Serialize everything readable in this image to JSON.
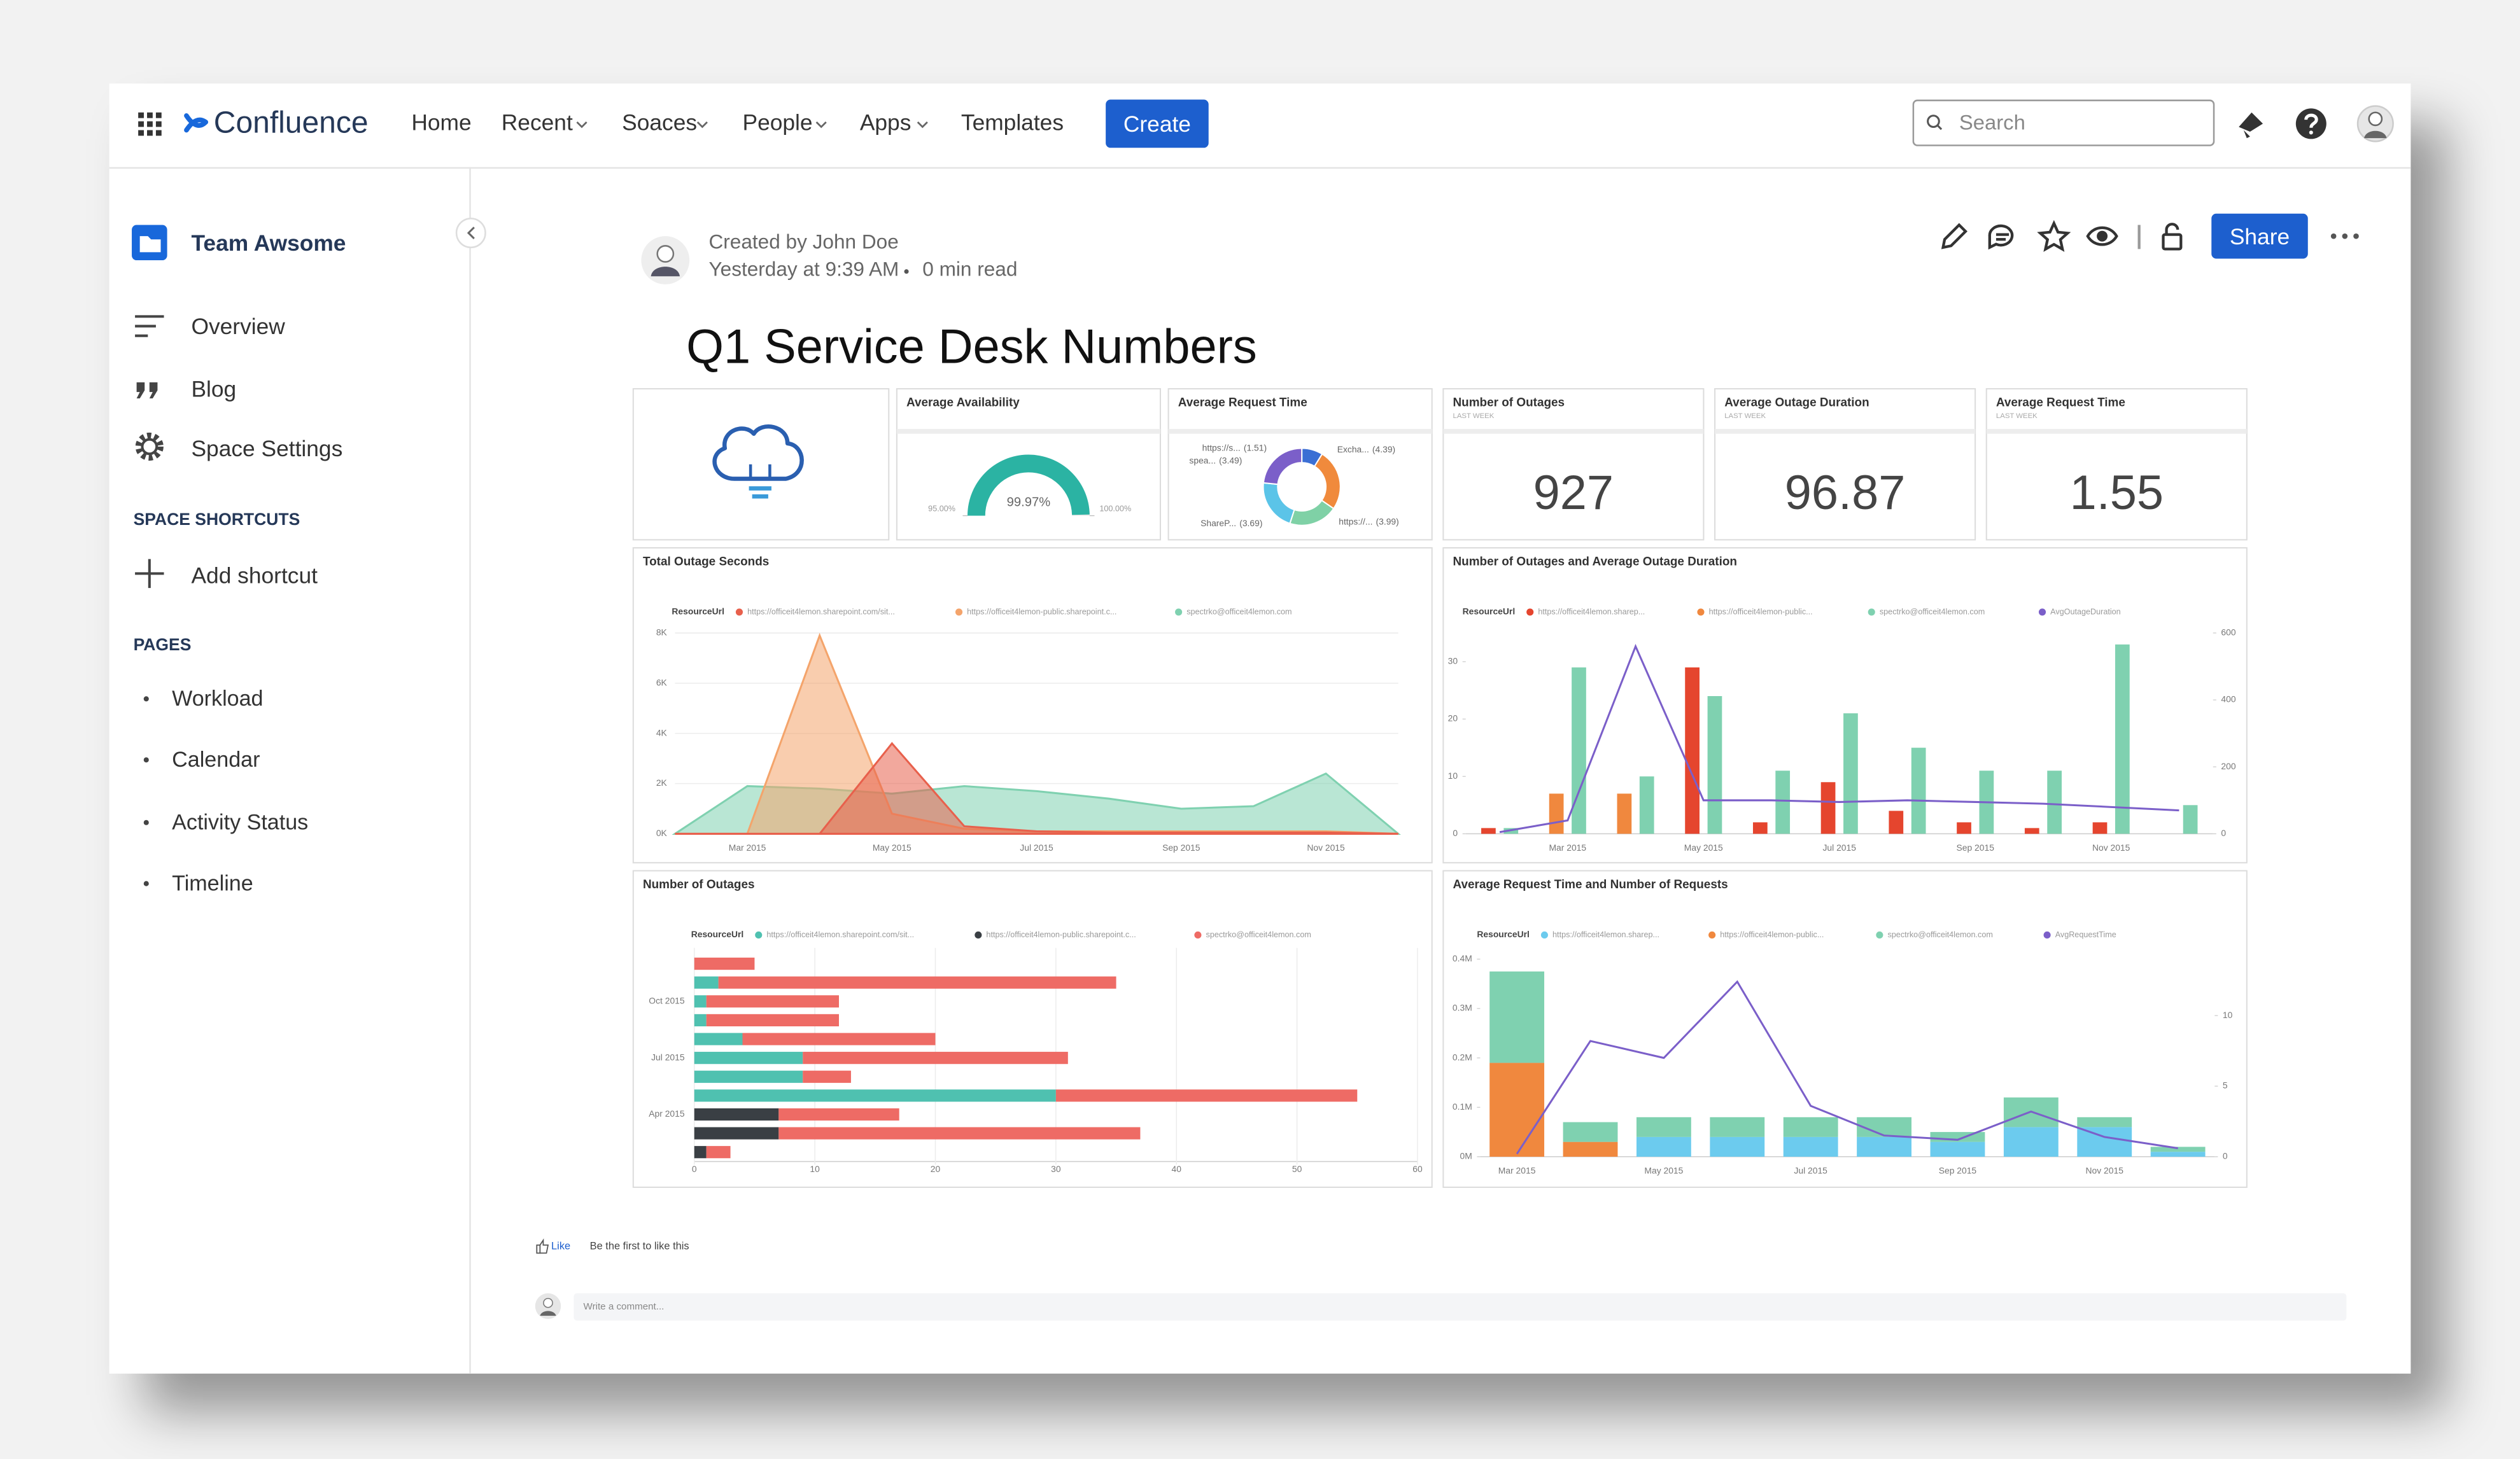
{
  "nav": {
    "brand": "Confluence",
    "items": [
      "Home",
      "Recent",
      "Soaces",
      "People",
      "Apps",
      "Templates"
    ],
    "create": "Create",
    "search": "Search"
  },
  "sidebar": {
    "space": "Team Awsome",
    "links": [
      "Overview",
      "Blog",
      "Space Settings"
    ],
    "shortcuts_heading": "SPACE SHORTCUTS",
    "add_shortcut": "Add shortcut",
    "pages_heading": "PAGES",
    "pages": [
      "Workload",
      "Calendar",
      "Activity Status",
      "Timeline"
    ]
  },
  "page": {
    "author": "Created by John Doe",
    "timestamp": "Yesterday at 9:39 AM",
    "read_time": "0 min read",
    "title": "Q1 Service Desk Numbers",
    "share": "Share",
    "like": "Like",
    "like_prompt": "Be the first to like this",
    "comment_placeholder": "Write a comment..."
  },
  "chart_data": [
    {
      "type": "gauge",
      "title": "Average Availability",
      "values": [
        99.97
      ],
      "value_labels": [
        "99.97%"
      ],
      "ylim": [
        95,
        100
      ],
      "yticks": [
        {
          "value": 95,
          "label": "95.00%"
        },
        {
          "value": 100,
          "label": "100.00%"
        }
      ],
      "color": "#2bb3a3"
    },
    {
      "type": "pie",
      "title": "Average Request Time",
      "categories": [
        "https://s...",
        "Excha...",
        "spea...",
        "ShareP...",
        "https://..."
      ],
      "values": [
        1.51,
        4.39,
        3.49,
        3.69,
        3.99
      ],
      "value_labels": [
        "(1.51)",
        "(4.39)",
        "(3.49)",
        "(3.69)",
        "(3.99)"
      ],
      "colors": [
        "#3b6fd4",
        "#f08a3c",
        "#7fd1a6",
        "#5bc4e8",
        "#7b5fc9"
      ]
    },
    {
      "type": "kpi",
      "title": "Number of Outages",
      "subtitle": "LAST WEEK",
      "values": [
        927
      ]
    },
    {
      "type": "kpi",
      "title": "Average Outage Duration",
      "subtitle": "LAST WEEK",
      "values": [
        96.87
      ]
    },
    {
      "type": "kpi",
      "title": "Average Request Time",
      "subtitle": "LAST WEEK",
      "values": [
        1.55
      ]
    },
    {
      "type": "area",
      "title": "Total Outage Seconds",
      "legend_title": "ResourceUrl",
      "categories": [
        null,
        "Mar 2015",
        null,
        "May 2015",
        null,
        "Jul 2015",
        null,
        "Sep 2015",
        null,
        "Nov 2015",
        null
      ],
      "series": [
        {
          "name": "https://officeit4lemon.sharepoint.com/sit...",
          "color": "#e8604c",
          "values": [
            0,
            0,
            0,
            3600,
            300,
            100,
            50,
            50,
            50,
            50,
            0
          ]
        },
        {
          "name": "https://officeit4lemon-public.sharepoint.c...",
          "color": "#f4a46b",
          "values": [
            0,
            0,
            7900,
            800,
            200,
            100,
            100,
            100,
            100,
            100,
            0
          ]
        },
        {
          "name": "spectrko@officeit4lemon.com",
          "color": "#7fd1b0",
          "values": [
            0,
            1900,
            1800,
            1600,
            1900,
            1700,
            1400,
            1000,
            1100,
            2400,
            0
          ]
        }
      ],
      "ylim": [
        0,
        8000
      ],
      "yticks": [
        {
          "value": 0,
          "label": "0K"
        },
        {
          "value": 2000,
          "label": "2K"
        },
        {
          "value": 4000,
          "label": "4K"
        },
        {
          "value": 6000,
          "label": "6K"
        },
        {
          "value": 8000,
          "label": "8K"
        }
      ],
      "grid": true
    },
    {
      "type": "bar_line",
      "title": "Number of Outages and Average Outage Duration",
      "legend_title": "ResourceUrl",
      "categories": [
        null,
        "Mar 2015",
        null,
        "May 2015",
        null,
        "Jul 2015",
        null,
        "Sep 2015",
        null,
        "Nov 2015",
        null
      ],
      "series": [
        {
          "name": "https://officeit4lemon.sharep...",
          "color": "#e5452e",
          "values": [
            1,
            0,
            0,
            29,
            2,
            9,
            4,
            2,
            1,
            2,
            0
          ]
        },
        {
          "name": "https://officeit4lemon-public...",
          "color": "#f0883e",
          "values": [
            0,
            7,
            7,
            0,
            0,
            0,
            0,
            0,
            0,
            0,
            0
          ]
        },
        {
          "name": "spectrko@officeit4lemon.com",
          "color": "#7fd1b0",
          "values": [
            1,
            29,
            10,
            24,
            11,
            21,
            15,
            11,
            11,
            33,
            5
          ]
        },
        {
          "name": "AvgOutageDuration",
          "color": "#7b5fc9",
          "axis": "y2",
          "values": [
            5,
            40,
            560,
            100,
            100,
            95,
            100,
            95,
            90,
            80,
            70
          ]
        }
      ],
      "ylim": [
        0,
        35
      ],
      "yticks": [
        0,
        10,
        20,
        30
      ],
      "y2lim": [
        0,
        600
      ],
      "y2ticks": [
        0,
        200,
        400,
        600
      ],
      "grid": false
    },
    {
      "type": "hbar_stacked",
      "title": "Number of Outages",
      "legend_title": "ResourceUrl",
      "categories": [
        null,
        null,
        "Oct 2015",
        null,
        null,
        "Jul 2015",
        null,
        null,
        "Apr 2015",
        null,
        null
      ],
      "series": [
        {
          "name": "https://officeit4lemon.sharepoint.com/sit...",
          "color": "#4fc1b0",
          "values": [
            0,
            2,
            1,
            1,
            4,
            9,
            9,
            30,
            0,
            0,
            0
          ]
        },
        {
          "name": "https://officeit4lemon-public.sharepoint.c...",
          "color": "#3a3f44",
          "values": [
            0,
            0,
            0,
            0,
            0,
            0,
            0,
            0,
            7,
            7,
            1
          ]
        },
        {
          "name": "spectrko@officeit4lemon.com",
          "color": "#ee6b65",
          "values": [
            5,
            33,
            11,
            11,
            16,
            22,
            4,
            25,
            10,
            30,
            2
          ]
        }
      ],
      "xlim": [
        0,
        60
      ],
      "xticks": [
        0,
        10,
        20,
        30,
        40,
        50,
        60
      ],
      "grid": true
    },
    {
      "type": "stacked_bar_line",
      "title": "Average Request Time and Number of Requests",
      "legend_title": "ResourceUrl",
      "categories": [
        "Mar 2015",
        null,
        "May 2015",
        null,
        "Jul 2015",
        null,
        "Sep 2015",
        null,
        "Nov 2015",
        null
      ],
      "series": [
        {
          "name": "https://officeit4lemon.sharep...",
          "color": "#6ccbee",
          "values": [
            0,
            0,
            40000,
            40000,
            40000,
            40000,
            30000,
            60000,
            60000,
            10000
          ]
        },
        {
          "name": "https://officeit4lemon-public...",
          "color": "#f0883e",
          "values": [
            190000,
            30000,
            0,
            0,
            0,
            0,
            0,
            0,
            0,
            0
          ]
        },
        {
          "name": "spectrko@officeit4lemon.com",
          "color": "#7fd1b0",
          "values": [
            185000,
            40000,
            40000,
            40000,
            40000,
            40000,
            20000,
            60000,
            20000,
            10000
          ]
        },
        {
          "name": "AvgRequestTime",
          "color": "#7b5fc9",
          "axis": "y2",
          "values": [
            0.2,
            8.2,
            7,
            12.4,
            3.6,
            1.5,
            1.2,
            3.2,
            1.4,
            0.6
          ]
        }
      ],
      "ylim": [
        0,
        400000
      ],
      "yticks": [
        {
          "value": 0,
          "label": "0M"
        },
        {
          "value": 100000,
          "label": "0.1M"
        },
        {
          "value": 200000,
          "label": "0.2M"
        },
        {
          "value": 300000,
          "label": "0.3M"
        },
        {
          "value": 400000,
          "label": "0.4M"
        }
      ],
      "y2lim": [
        0,
        14
      ],
      "y2ticks": [
        0,
        5,
        10
      ],
      "grid": false
    }
  ]
}
